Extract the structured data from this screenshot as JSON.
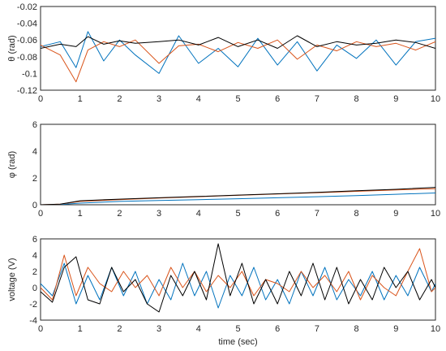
{
  "chart_data": [
    {
      "type": "line",
      "ylabel": "θ (rad)",
      "xlabel": "",
      "xlim": [
        0,
        10
      ],
      "ylim": [
        -0.12,
        -0.02
      ],
      "xticks": [
        "0",
        "1",
        "2",
        "3",
        "4",
        "5",
        "6",
        "7",
        "8",
        "9",
        "10"
      ],
      "yticks": [
        "-0.12",
        "-0.1",
        "-0.08",
        "-0.06",
        "-0.04",
        "-0.02"
      ],
      "grid": true,
      "x": [
        0,
        0.5,
        0.9,
        1.2,
        1.6,
        2,
        2.4,
        3,
        3.5,
        4,
        4.5,
        5,
        5.5,
        6,
        6.5,
        7,
        7.5,
        8,
        8.5,
        9,
        9.5,
        10
      ],
      "series": [
        {
          "color": "#0072BD",
          "values": [
            -0.068,
            -0.062,
            -0.093,
            -0.05,
            -0.085,
            -0.06,
            -0.078,
            -0.1,
            -0.055,
            -0.088,
            -0.07,
            -0.092,
            -0.058,
            -0.09,
            -0.062,
            -0.097,
            -0.066,
            -0.082,
            -0.06,
            -0.09,
            -0.062,
            -0.058
          ]
        },
        {
          "color": "#D95319",
          "values": [
            -0.066,
            -0.078,
            -0.11,
            -0.072,
            -0.062,
            -0.068,
            -0.06,
            -0.088,
            -0.067,
            -0.065,
            -0.074,
            -0.063,
            -0.07,
            -0.06,
            -0.083,
            -0.066,
            -0.073,
            -0.062,
            -0.068,
            -0.064,
            -0.072,
            -0.062
          ]
        },
        {
          "color": "#000000",
          "values": [
            -0.07,
            -0.065,
            -0.068,
            -0.056,
            -0.065,
            -0.061,
            -0.064,
            -0.062,
            -0.06,
            -0.066,
            -0.057,
            -0.068,
            -0.06,
            -0.07,
            -0.055,
            -0.068,
            -0.062,
            -0.066,
            -0.064,
            -0.06,
            -0.063,
            -0.07
          ]
        }
      ]
    },
    {
      "type": "line",
      "ylabel": "φ (rad)",
      "xlabel": "",
      "xlim": [
        0,
        10
      ],
      "ylim": [
        0,
        6
      ],
      "xticks": [
        "0",
        "1",
        "2",
        "3",
        "4",
        "5",
        "6",
        "7",
        "8",
        "9",
        "10"
      ],
      "yticks": [
        "0",
        "2",
        "4",
        "6"
      ],
      "grid": true,
      "x": [
        0,
        0.5,
        1,
        2,
        3,
        4,
        5,
        6,
        7,
        8,
        9,
        10
      ],
      "series": [
        {
          "color": "#0072BD",
          "values": [
            0,
            0.02,
            0.12,
            0.25,
            0.32,
            0.38,
            0.45,
            0.52,
            0.6,
            0.68,
            0.78,
            0.88
          ]
        },
        {
          "color": "#D95319",
          "values": [
            0,
            0.04,
            0.25,
            0.38,
            0.5,
            0.6,
            0.7,
            0.8,
            0.9,
            1.0,
            1.1,
            1.2
          ]
        },
        {
          "color": "#000000",
          "values": [
            0,
            0.05,
            0.3,
            0.42,
            0.52,
            0.62,
            0.72,
            0.82,
            0.92,
            1.05,
            1.15,
            1.3
          ]
        }
      ]
    },
    {
      "type": "line",
      "ylabel": "voltage (V)",
      "xlabel": "time (sec)",
      "xlim": [
        0,
        10
      ],
      "ylim": [
        -4,
        6
      ],
      "xticks": [
        "0",
        "1",
        "2",
        "3",
        "4",
        "5",
        "6",
        "7",
        "8",
        "9",
        "10"
      ],
      "yticks": [
        "-4",
        "-2",
        "0",
        "2",
        "4",
        "6"
      ],
      "grid": true,
      "x": [
        0,
        0.3,
        0.6,
        0.9,
        1.2,
        1.5,
        1.8,
        2.1,
        2.4,
        2.7,
        3.0,
        3.3,
        3.6,
        3.9,
        4.2,
        4.5,
        4.8,
        5.1,
        5.4,
        5.7,
        6.0,
        6.3,
        6.6,
        6.9,
        7.2,
        7.5,
        7.8,
        8.1,
        8.4,
        8.7,
        9.0,
        9.3,
        9.6,
        9.9,
        10
      ],
      "series": [
        {
          "color": "#0072BD",
          "values": [
            0.5,
            -1.0,
            3.0,
            -2.0,
            1.5,
            -1.5,
            2.5,
            -1.0,
            2.0,
            -2.0,
            1.0,
            -1.5,
            3.0,
            -1.0,
            2.0,
            -2.5,
            1.5,
            -1.0,
            2.5,
            -1.5,
            1.0,
            -2.0,
            2.0,
            -1.0,
            2.5,
            -1.5,
            1.0,
            -1.0,
            2.0,
            -1.5,
            1.5,
            -1.0,
            2.5,
            -0.5,
            0.5
          ]
        },
        {
          "color": "#D95319",
          "values": [
            0.0,
            -1.5,
            4.0,
            -1.0,
            2.5,
            0.5,
            -0.5,
            2.0,
            0.0,
            1.5,
            -1.0,
            2.5,
            0.0,
            2.0,
            -0.5,
            1.5,
            0.0,
            2.0,
            -1.0,
            1.0,
            0.5,
            -0.5,
            2.0,
            0.0,
            1.5,
            -0.5,
            2.0,
            -1.5,
            1.5,
            0.0,
            -1.0,
            2.0,
            4.8,
            -0.5,
            0.0
          ]
        },
        {
          "color": "#000000",
          "values": [
            -0.5,
            -1.8,
            2.5,
            3.8,
            -1.5,
            -2.0,
            2.5,
            -0.5,
            1.0,
            -2.0,
            -3.0,
            1.5,
            -1.0,
            2.0,
            -1.5,
            5.4,
            -1.0,
            3.0,
            -2.0,
            1.0,
            -2.0,
            2.0,
            -1.0,
            3.0,
            -1.5,
            2.5,
            -2.0,
            1.0,
            -1.5,
            2.5,
            0.0,
            2.0,
            -1.5,
            1.0,
            0.0
          ]
        }
      ]
    }
  ]
}
